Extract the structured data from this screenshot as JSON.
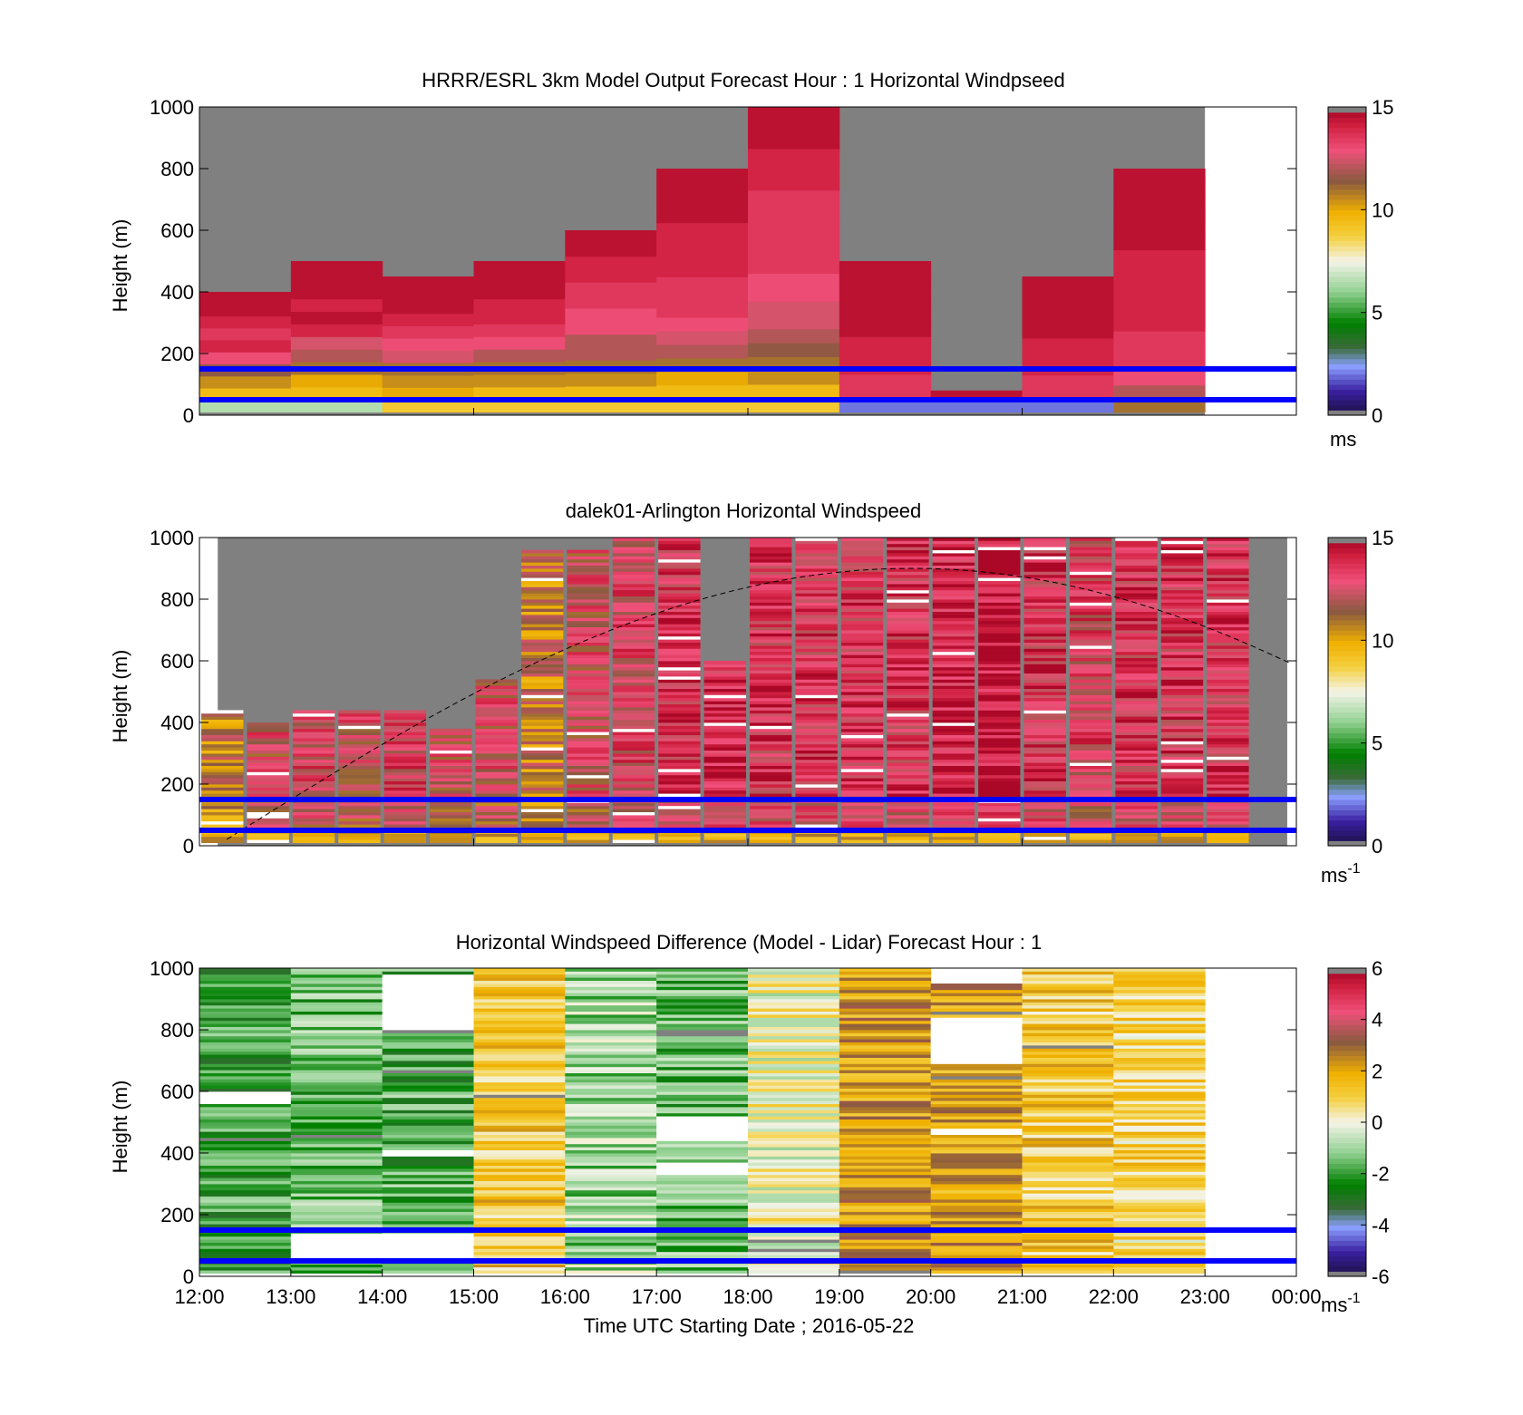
{
  "figure": {
    "xlabel": "Time UTC  Starting Date ; 2016-05-22",
    "x_ticks": [
      "12:00",
      "13:00",
      "14:00",
      "15:00",
      "16:00",
      "17:00",
      "18:00",
      "19:00",
      "20:00",
      "21:00",
      "22:00",
      "23:00",
      "00:00"
    ]
  },
  "colors": {
    "missing": "#808080",
    "empty": "#ffffff",
    "range_lines": "#0000ff",
    "solar_curve": "#000000"
  },
  "chart_data": [
    {
      "type": "heatmap",
      "title": "HRRR/ESRL 3km Model Output   Forecast Hour : 1 Horizontal Windpseed",
      "ylabel": "Height (m)",
      "ylim": [
        0,
        1000
      ],
      "y_ticks": [
        "0",
        "200",
        "400",
        "600",
        "800",
        "1000"
      ],
      "xlim_hours": [
        12,
        24
      ],
      "x_tick_labels_shown": false,
      "x_minor_ticks_hours": [
        15,
        18,
        21
      ],
      "colorbar": {
        "min": 0,
        "max": 15,
        "ticks": [
          "0",
          "5",
          "10",
          "15"
        ],
        "unit": "ms",
        "unit_sup": ""
      },
      "range_lines_m": [
        50,
        150
      ],
      "columns": [
        {
          "hour": 12,
          "top_m": 400,
          "speeds": [
            6.5,
            9.5,
            10.5,
            11.5,
            13,
            14,
            13.5,
            14,
            14.5,
            14.5
          ]
        },
        {
          "hour": 13,
          "top_m": 500,
          "speeds": [
            6.5,
            9.5,
            10,
            11,
            12,
            12.5,
            14,
            14.5,
            14,
            14.5,
            14.5,
            14.5
          ]
        },
        {
          "hour": 14,
          "top_m": 450,
          "speeds": [
            9,
            10,
            10.5,
            11,
            12.5,
            13,
            13.5,
            14,
            14.5,
            14.5,
            14.5
          ]
        },
        {
          "hour": 15,
          "top_m": 500,
          "speeds": [
            9,
            9.5,
            10.5,
            11,
            12,
            13,
            13.5,
            14,
            14,
            14.5,
            14.5,
            14.5
          ]
        },
        {
          "hour": 16,
          "top_m": 600,
          "speeds": [
            9,
            9.5,
            10.5,
            11,
            12,
            12,
            13,
            13,
            13.5,
            13.5,
            14,
            14,
            14.5,
            14.5
          ]
        },
        {
          "hour": 17,
          "top_m": 800,
          "speeds": [
            9,
            9.5,
            10,
            11,
            12,
            12.5,
            13,
            13.5,
            13.5,
            13.5,
            14,
            14,
            14,
            14,
            14.5,
            14.5,
            14.5,
            14.5
          ]
        },
        {
          "hour": 18,
          "top_m": 1000,
          "speeds": [
            9,
            9.5,
            10.5,
            11,
            11.5,
            12,
            12.5,
            12.5,
            13,
            13,
            13.5,
            13.5,
            13.5,
            13.5,
            13.5,
            13.5,
            14,
            14,
            14,
            14.5,
            14.5,
            14.5
          ]
        },
        {
          "hour": 19,
          "top_m": 500,
          "speeds": [
            2,
            13.5,
            13.5,
            14,
            14,
            14,
            14.5,
            14.5,
            14.5,
            14.5,
            14.5,
            14.5
          ]
        },
        {
          "hour": 20,
          "top_m": 80,
          "speeds": [
            2,
            14.5
          ]
        },
        {
          "hour": 21,
          "top_m": 450,
          "speeds": [
            2,
            13.5,
            13.5,
            14,
            14,
            14,
            14.5,
            14.5,
            14.5,
            14.5,
            14.5
          ]
        },
        {
          "hour": 22,
          "top_m": 800,
          "speeds": [
            11,
            12,
            13,
            13.5,
            13.5,
            13.5,
            14,
            14,
            14,
            14,
            14,
            14,
            14.5,
            14.5,
            14.5,
            14.5,
            14.5,
            14.5
          ]
        }
      ]
    },
    {
      "type": "heatmap",
      "title": "dalek01-Arlington  Horizontal Windspeed",
      "ylabel": "Height (m)",
      "ylim": [
        0,
        1000
      ],
      "y_ticks": [
        "0",
        "200",
        "400",
        "600",
        "800",
        "1000"
      ],
      "xlim_hours": [
        12,
        24
      ],
      "x_tick_labels_shown": false,
      "x_minor_ticks_hours": [
        15,
        18,
        21
      ],
      "colorbar": {
        "min": 0,
        "max": 15,
        "ticks": [
          "0",
          "5",
          "10",
          "15"
        ],
        "unit": "ms",
        "unit_sup": "-1"
      },
      "range_lines_m": [
        50,
        150
      ],
      "solar_curve": {
        "peak_hour": 19.8,
        "peak_m": 900,
        "half_width_hours": 6.3
      },
      "columns": [
        {
          "hour": 12.0,
          "top_m": 440,
          "base_speed": 11.0
        },
        {
          "hour": 12.5,
          "top_m": 400,
          "base_speed": 12.5
        },
        {
          "hour": 13.0,
          "top_m": 440,
          "base_speed": 13.0
        },
        {
          "hour": 13.5,
          "top_m": 440,
          "base_speed": 12.5
        },
        {
          "hour": 14.0,
          "top_m": 440,
          "base_speed": 13.0
        },
        {
          "hour": 14.5,
          "top_m": 380,
          "base_speed": 12.5
        },
        {
          "hour": 15.0,
          "top_m": 540,
          "base_speed": 12.5
        },
        {
          "hour": 15.5,
          "top_m": 960,
          "base_speed": 11.0
        },
        {
          "hour": 16.0,
          "top_m": 960,
          "base_speed": 12.5
        },
        {
          "hour": 16.5,
          "top_m": 1000,
          "base_speed": 13.0
        },
        {
          "hour": 17.0,
          "top_m": 1000,
          "base_speed": 13.5
        },
        {
          "hour": 17.5,
          "top_m": 600,
          "base_speed": 14.0
        },
        {
          "hour": 18.0,
          "top_m": 1000,
          "base_speed": 13.5
        },
        {
          "hour": 18.5,
          "top_m": 1000,
          "base_speed": 13.5
        },
        {
          "hour": 19.0,
          "top_m": 1000,
          "base_speed": 13.5
        },
        {
          "hour": 19.5,
          "top_m": 1000,
          "base_speed": 13.5
        },
        {
          "hour": 20.0,
          "top_m": 1000,
          "base_speed": 14.0
        },
        {
          "hour": 20.5,
          "top_m": 1000,
          "base_speed": 14.5
        },
        {
          "hour": 21.0,
          "top_m": 1000,
          "base_speed": 13.5
        },
        {
          "hour": 21.5,
          "top_m": 1000,
          "base_speed": 13.0
        },
        {
          "hour": 22.0,
          "top_m": 1000,
          "base_speed": 13.5
        },
        {
          "hour": 22.5,
          "top_m": 1000,
          "base_speed": 13.5
        },
        {
          "hour": 23.0,
          "top_m": 1000,
          "base_speed": 13.5
        }
      ]
    },
    {
      "type": "heatmap",
      "title": "Horizontal Windspeed Difference (Model - Lidar) Forecast Hour : 1",
      "ylabel": "Height (m)",
      "ylim": [
        0,
        1000
      ],
      "y_ticks": [
        "0",
        "200",
        "400",
        "600",
        "800",
        "1000"
      ],
      "xlim_hours": [
        12,
        24
      ],
      "x_tick_labels_shown": true,
      "colorbar": {
        "min": -6,
        "max": 6,
        "ticks": [
          "-6",
          "-4",
          "-2",
          "0",
          "2",
          "4",
          "6"
        ],
        "unit": "ms",
        "unit_sup": "-1"
      },
      "range_lines_m": [
        50,
        150
      ],
      "columns": [
        {
          "hour": 12,
          "top_m": 1000,
          "mean_diff": -2.0,
          "gaps_m": [
            [
              560,
              600
            ]
          ]
        },
        {
          "hour": 13,
          "top_m": 1000,
          "mean_diff": -1.5,
          "gaps_m": [
            [
              50,
              140
            ]
          ]
        },
        {
          "hour": 14,
          "top_m": 1000,
          "mean_diff": -1.8,
          "gaps_m": [
            [
              800,
              980
            ],
            [
              390,
              410
            ],
            [
              50,
              140
            ]
          ]
        },
        {
          "hour": 15,
          "top_m": 1000,
          "mean_diff": 1.2,
          "gaps_m": []
        },
        {
          "hour": 16,
          "top_m": 1000,
          "mean_diff": -1.0,
          "gaps_m": []
        },
        {
          "hour": 17,
          "top_m": 1000,
          "mean_diff": -1.5,
          "gaps_m": [
            [
              440,
              520
            ],
            [
              330,
              370
            ]
          ]
        },
        {
          "hour": 18,
          "top_m": 1000,
          "mean_diff": 0.0,
          "gaps_m": []
        },
        {
          "hour": 19,
          "top_m": 1000,
          "mean_diff": 2.2,
          "gaps_m": []
        },
        {
          "hour": 20,
          "top_m": 950,
          "mean_diff": 2.2,
          "gaps_m": [
            [
              690,
              840
            ],
            [
              460,
              480
            ]
          ]
        },
        {
          "hour": 21,
          "top_m": 1000,
          "mean_diff": 1.2,
          "gaps_m": []
        },
        {
          "hour": 22,
          "top_m": 1000,
          "mean_diff": 0.8,
          "gaps_m": []
        }
      ]
    }
  ]
}
